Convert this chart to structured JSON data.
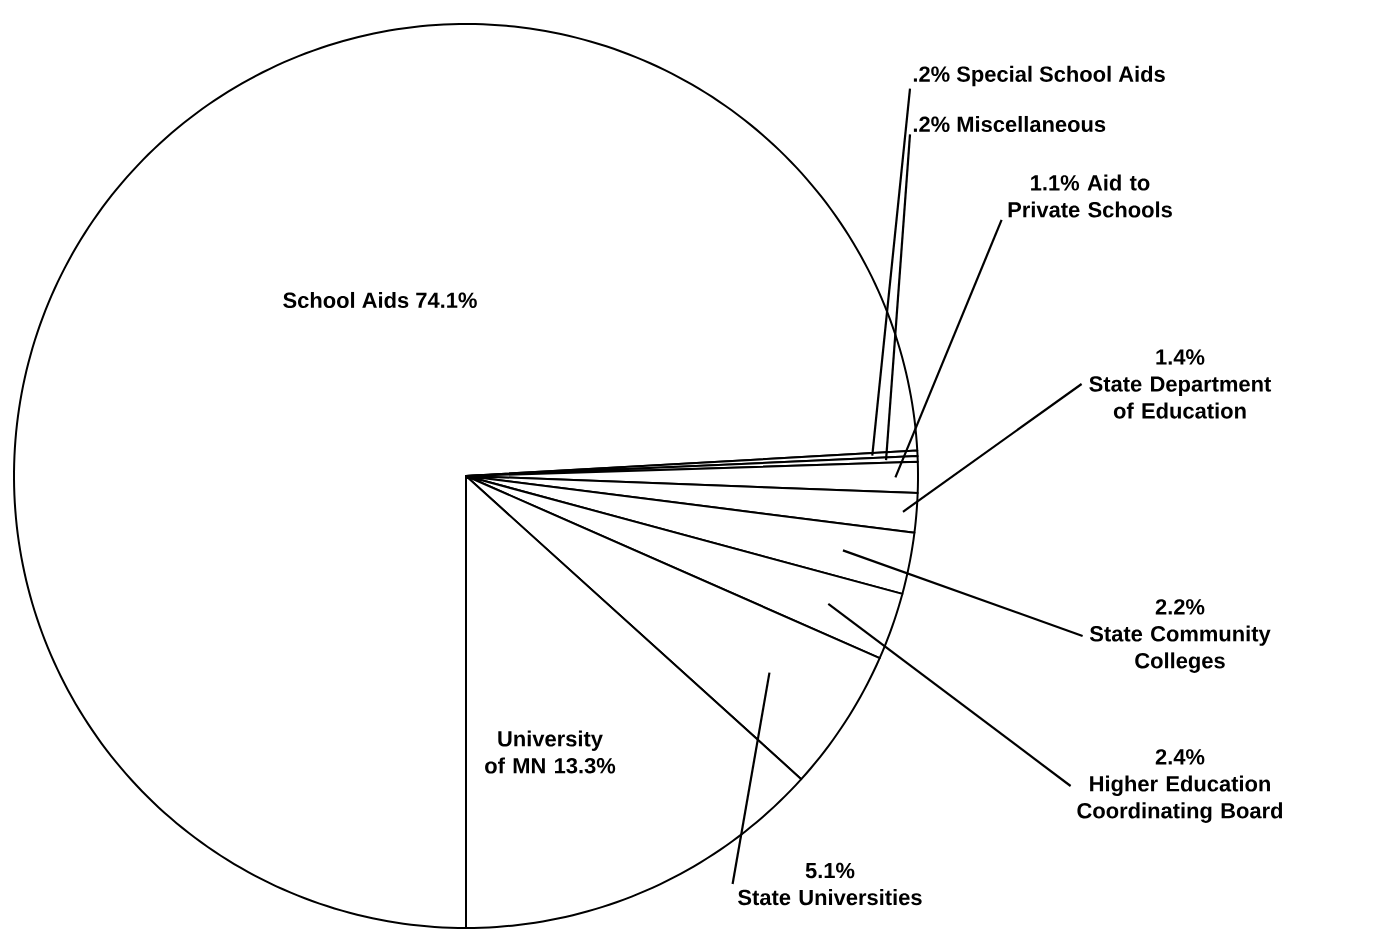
{
  "chart_data": {
    "type": "pie",
    "categories": [
      "School Aids",
      "Special School Aids",
      "Miscellaneous",
      "Aid to Private Schools",
      "State Department of Education",
      "State Community Colleges",
      "Higher Education Coordinating Board",
      "State Universities",
      "University of MN"
    ],
    "values": [
      74.1,
      0.2,
      0.2,
      1.1,
      1.4,
      2.2,
      2.4,
      5.1,
      13.3
    ],
    "value_labels": [
      "74.1%",
      ".2%",
      ".2%",
      "1.1%",
      "1.4%",
      "2.2%",
      "2.4%",
      "5.1%",
      "13.3%"
    ],
    "colors": [
      "#ffffff",
      "#ffffff",
      "#ffffff",
      "#ffffff",
      "#ffffff",
      "#ffffff",
      "#ffffff",
      "#ffffff",
      "#ffffff"
    ]
  }
}
